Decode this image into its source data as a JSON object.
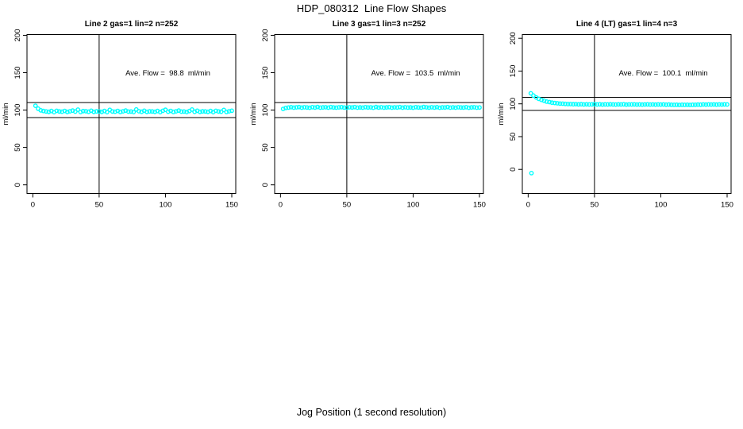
{
  "chart_data": {
    "type": "scatter",
    "title": "HDP_080312  Line Flow Shapes",
    "xlabel": "Jog Position (1 second resolution)",
    "point_color": "#00FFFF",
    "axis_color": "#000000",
    "xticks": [
      0,
      50,
      100,
      150
    ],
    "yticks": [
      0,
      50,
      100,
      150,
      200
    ],
    "xlim": [
      -4.4,
      153
    ],
    "ref_lines_y": [
      90,
      110
    ],
    "ref_line_x": 50,
    "grid": false,
    "panels": [
      {
        "title": "Line 2 gas=1 lin=2 n=252",
        "ylabel": "ml/min",
        "ave_flow_text": "Ave. Flow =  98.8  ml/min",
        "ave_flow": 98.8,
        "n": 252,
        "ylim": [
          -11.5,
          201
        ],
        "points": [
          [
            2,
            105.8
          ],
          [
            4,
            101.9
          ],
          [
            6,
            99.6
          ],
          [
            8,
            98.8
          ],
          [
            10,
            98.2
          ],
          [
            12,
            97.6
          ],
          [
            14,
            98.8
          ],
          [
            16,
            97.3
          ],
          [
            18,
            99.0
          ],
          [
            20,
            98.1
          ],
          [
            22,
            97.8
          ],
          [
            24,
            98.9
          ],
          [
            26,
            97.5
          ],
          [
            28,
            98.4
          ],
          [
            30,
            99.3
          ],
          [
            32,
            97.9
          ],
          [
            34,
            100.6
          ],
          [
            36,
            97.4
          ],
          [
            38,
            98.7
          ],
          [
            40,
            98.5
          ],
          [
            42,
            97.7
          ],
          [
            44,
            99.1
          ],
          [
            46,
            97.6
          ],
          [
            48,
            98.3
          ],
          [
            50,
            98.2
          ],
          [
            52,
            97.6
          ],
          [
            54,
            98.8
          ],
          [
            56,
            97.3
          ],
          [
            58,
            100.3
          ],
          [
            60,
            98.1
          ],
          [
            62,
            97.8
          ],
          [
            64,
            98.9
          ],
          [
            66,
            97.5
          ],
          [
            68,
            98.4
          ],
          [
            70,
            99.3
          ],
          [
            72,
            97.9
          ],
          [
            74,
            98.0
          ],
          [
            76,
            97.4
          ],
          [
            78,
            100.8
          ],
          [
            80,
            98.5
          ],
          [
            82,
            97.7
          ],
          [
            84,
            99.1
          ],
          [
            86,
            97.6
          ],
          [
            88,
            98.3
          ],
          [
            90,
            98.2
          ],
          [
            92,
            97.6
          ],
          [
            94,
            98.8
          ],
          [
            96,
            97.3
          ],
          [
            98,
            99.0
          ],
          [
            100,
            100.4
          ],
          [
            102,
            97.8
          ],
          [
            104,
            98.9
          ],
          [
            106,
            97.5
          ],
          [
            108,
            98.4
          ],
          [
            110,
            99.3
          ],
          [
            112,
            97.9
          ],
          [
            114,
            98.0
          ],
          [
            116,
            97.4
          ],
          [
            118,
            98.7
          ],
          [
            120,
            100.7
          ],
          [
            122,
            97.7
          ],
          [
            124,
            99.1
          ],
          [
            126,
            97.6
          ],
          [
            128,
            98.3
          ],
          [
            130,
            98.2
          ],
          [
            132,
            97.6
          ],
          [
            134,
            98.8
          ],
          [
            136,
            97.3
          ],
          [
            138,
            99.0
          ],
          [
            140,
            98.1
          ],
          [
            142,
            97.8
          ],
          [
            144,
            100.2
          ],
          [
            146,
            97.5
          ],
          [
            148,
            98.4
          ],
          [
            150,
            99.1
          ]
        ]
      },
      {
        "title": "Line 3 gas=1 lin=3 n=252",
        "ylabel": "ml/min",
        "ave_flow_text": "Ave. Flow =  103.5  ml/min",
        "ave_flow": 103.5,
        "n": 252,
        "ylim": [
          -11.5,
          201
        ],
        "points": [
          [
            2,
            101.6
          ],
          [
            4,
            102.8
          ],
          [
            6,
            103.4
          ],
          [
            8,
            103.9
          ],
          [
            10,
            103.2
          ],
          [
            12,
            103.7
          ],
          [
            14,
            104.0
          ],
          [
            16,
            103.3
          ],
          [
            18,
            103.8
          ],
          [
            20,
            103.5
          ],
          [
            22,
            103.1
          ],
          [
            24,
            103.9
          ],
          [
            26,
            103.4
          ],
          [
            28,
            104.1
          ],
          [
            30,
            103.2
          ],
          [
            32,
            103.6
          ],
          [
            34,
            103.8
          ],
          [
            36,
            103.3
          ],
          [
            38,
            104.0
          ],
          [
            40,
            103.5
          ],
          [
            42,
            103.2
          ],
          [
            44,
            103.7
          ],
          [
            46,
            103.9
          ],
          [
            48,
            103.4
          ],
          [
            50,
            103.1
          ],
          [
            52,
            103.8
          ],
          [
            54,
            103.5
          ],
          [
            56,
            104.0
          ],
          [
            58,
            103.3
          ],
          [
            60,
            103.6
          ],
          [
            62,
            103.2
          ],
          [
            64,
            103.9
          ],
          [
            66,
            103.5
          ],
          [
            68,
            103.7
          ],
          [
            70,
            103.1
          ],
          [
            72,
            104.1
          ],
          [
            74,
            103.4
          ],
          [
            76,
            103.8
          ],
          [
            78,
            103.2
          ],
          [
            80,
            103.6
          ],
          [
            82,
            103.9
          ],
          [
            84,
            103.3
          ],
          [
            86,
            103.7
          ],
          [
            88,
            103.5
          ],
          [
            90,
            104.0
          ],
          [
            92,
            103.2
          ],
          [
            94,
            103.8
          ],
          [
            96,
            103.4
          ],
          [
            98,
            103.6
          ],
          [
            100,
            103.1
          ],
          [
            102,
            103.9
          ],
          [
            104,
            103.5
          ],
          [
            106,
            103.3
          ],
          [
            108,
            104.1
          ],
          [
            110,
            103.7
          ],
          [
            112,
            103.2
          ],
          [
            114,
            103.8
          ],
          [
            116,
            103.4
          ],
          [
            118,
            103.9
          ],
          [
            120,
            103.1
          ],
          [
            122,
            103.6
          ],
          [
            124,
            103.5
          ],
          [
            126,
            104.0
          ],
          [
            128,
            103.3
          ],
          [
            130,
            103.7
          ],
          [
            132,
            103.2
          ],
          [
            134,
            103.8
          ],
          [
            136,
            103.5
          ],
          [
            138,
            103.4
          ],
          [
            140,
            103.9
          ],
          [
            142,
            103.1
          ],
          [
            144,
            103.6
          ],
          [
            146,
            103.8
          ],
          [
            148,
            103.3
          ],
          [
            150,
            103.5
          ]
        ]
      },
      {
        "title": "Line 4 (LT) gas=1 lin=4 n=3",
        "ylabel": "ml/min",
        "ave_flow_text": "Ave. Flow =  100.1  ml/min",
        "ave_flow": 100.1,
        "n": 3,
        "ylim": [
          -36.7,
          205.7
        ],
        "points": [
          [
            2,
            116.0
          ],
          [
            2.5,
            -5.7
          ],
          [
            4,
            112.6
          ],
          [
            6,
            109.8
          ],
          [
            8,
            107.7
          ],
          [
            10,
            106.1
          ],
          [
            12,
            104.7
          ],
          [
            14,
            103.4
          ],
          [
            16,
            102.7
          ],
          [
            18,
            101.8
          ],
          [
            20,
            101.3
          ],
          [
            22,
            100.9
          ],
          [
            24,
            100.4
          ],
          [
            26,
            100.2
          ],
          [
            28,
            99.9
          ],
          [
            30,
            99.7
          ],
          [
            32,
            99.6
          ],
          [
            34,
            99.4
          ],
          [
            36,
            99.5
          ],
          [
            38,
            99.2
          ],
          [
            40,
            99.4
          ],
          [
            42,
            99.1
          ],
          [
            44,
            99.3
          ],
          [
            46,
            99.0
          ],
          [
            48,
            99.2
          ],
          [
            50,
            99.4
          ],
          [
            52,
            99.1
          ],
          [
            54,
            99.3
          ],
          [
            56,
            98.9
          ],
          [
            58,
            99.2
          ],
          [
            60,
            99.0
          ],
          [
            62,
            99.3
          ],
          [
            64,
            99.1
          ],
          [
            66,
            98.9
          ],
          [
            68,
            99.2
          ],
          [
            70,
            99.0
          ],
          [
            72,
            99.3
          ],
          [
            74,
            98.8
          ],
          [
            76,
            99.1
          ],
          [
            78,
            99.0
          ],
          [
            80,
            99.2
          ],
          [
            82,
            98.9
          ],
          [
            84,
            99.1
          ],
          [
            86,
            98.8
          ],
          [
            88,
            99.0
          ],
          [
            90,
            99.2
          ],
          [
            92,
            98.9
          ],
          [
            94,
            99.1
          ],
          [
            96,
            98.8
          ],
          [
            98,
            99.0
          ],
          [
            100,
            98.9
          ],
          [
            102,
            99.1
          ],
          [
            104,
            98.7
          ],
          [
            106,
            98.9
          ],
          [
            108,
            98.5
          ],
          [
            110,
            98.4
          ],
          [
            112,
            98.6
          ],
          [
            114,
            98.3
          ],
          [
            116,
            98.5
          ],
          [
            118,
            98.4
          ],
          [
            120,
            98.6
          ],
          [
            122,
            98.3
          ],
          [
            124,
            98.5
          ],
          [
            126,
            98.6
          ],
          [
            128,
            98.8
          ],
          [
            130,
            98.7
          ],
          [
            132,
            99.0
          ],
          [
            134,
            98.8
          ],
          [
            136,
            99.1
          ],
          [
            138,
            98.9
          ],
          [
            140,
            99.0
          ],
          [
            142,
            98.8
          ],
          [
            144,
            99.1
          ],
          [
            146,
            98.9
          ],
          [
            148,
            99.2
          ],
          [
            150,
            99.0
          ]
        ]
      }
    ]
  }
}
